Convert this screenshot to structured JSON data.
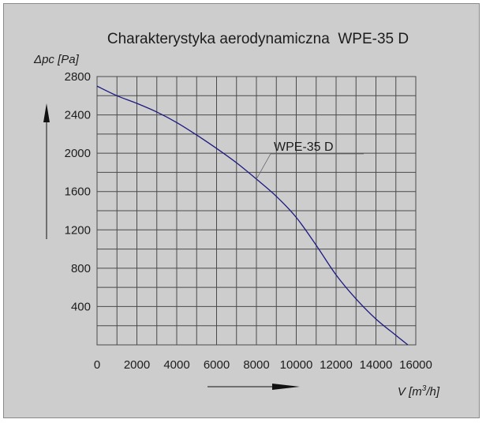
{
  "chart_data": {
    "type": "line",
    "title": "Charakterystyka aerodynamiczna  WPE-35 D",
    "ylabel": "Δpc [Pa]",
    "xlabel_parts": {
      "prefix": "V [m",
      "sup": "3",
      "suffix": "/h]"
    },
    "xlim": [
      0,
      16000
    ],
    "ylim": [
      0,
      2800
    ],
    "x_ticks": [
      0,
      2000,
      4000,
      6000,
      8000,
      10000,
      12000,
      14000,
      16000
    ],
    "y_ticks": [
      400,
      800,
      1200,
      1600,
      2000,
      2400,
      2800
    ],
    "grid": true,
    "series": [
      {
        "name": "WPE-35 D",
        "color": "#1c1a80",
        "x": [
          0,
          1000,
          2000,
          3000,
          4000,
          5000,
          6000,
          7000,
          8000,
          9000,
          10000,
          11000,
          12000,
          13000,
          14000,
          15000,
          15600
        ],
        "y": [
          2700,
          2600,
          2520,
          2430,
          2320,
          2190,
          2050,
          1900,
          1730,
          1550,
          1330,
          1040,
          730,
          480,
          270,
          100,
          0
        ]
      }
    ],
    "annotation": {
      "text": "WPE-35 D",
      "series": 0,
      "x": 8000,
      "y": 1730
    }
  }
}
